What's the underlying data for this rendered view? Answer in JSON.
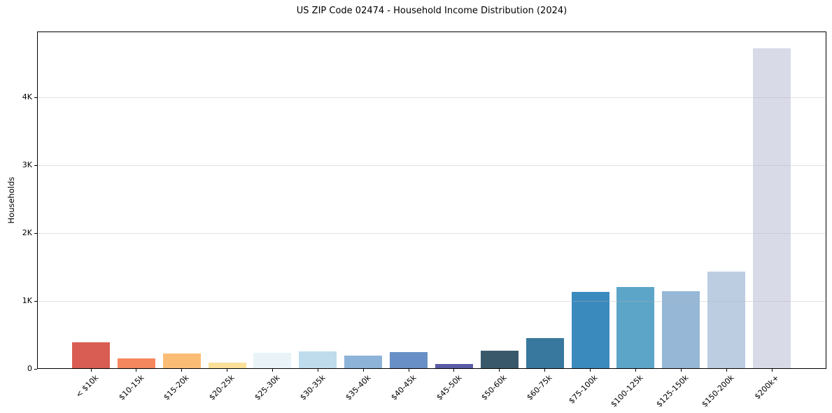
{
  "chart_data": {
    "type": "bar",
    "title": "US ZIP Code 02474 - Household Income Distribution (2024)",
    "xlabel": "",
    "ylabel": "Households",
    "categories": [
      "< $10k",
      "$10-15k",
      "$15-20k",
      "$20-25k",
      "$25-30k",
      "$30-35k",
      "$35-40k",
      "$40-45k",
      "$45-50k",
      "$50-60k",
      "$60-75k",
      "$75-100k",
      "$100-125k",
      "$125-150k",
      "$150-200k",
      "$200k+"
    ],
    "values": [
      390,
      150,
      230,
      95,
      240,
      255,
      195,
      250,
      70,
      270,
      455,
      1130,
      1210,
      1140,
      1430,
      4720
    ],
    "bar_colors": [
      "#d95d53",
      "#f5875f",
      "#fbbd76",
      "#fbe09a",
      "#e9f3f8",
      "#bedcec",
      "#8db4d8",
      "#6890c6",
      "#5a5ca8",
      "#39596b",
      "#38789e",
      "#3b8abe",
      "#5da5c8",
      "#96b7d6",
      "#bccde2",
      "#d9dae7"
    ],
    "ylim": [
      0,
      4970
    ],
    "yticks": [
      {
        "value": 0,
        "label": "0"
      },
      {
        "value": 1000,
        "label": "1K"
      },
      {
        "value": 2000,
        "label": "2K"
      },
      {
        "value": 3000,
        "label": "3K"
      },
      {
        "value": 4000,
        "label": "4K"
      }
    ],
    "grid": "horizontal",
    "legend": "none",
    "axis_color": "#000000",
    "background": "#ffffff"
  }
}
